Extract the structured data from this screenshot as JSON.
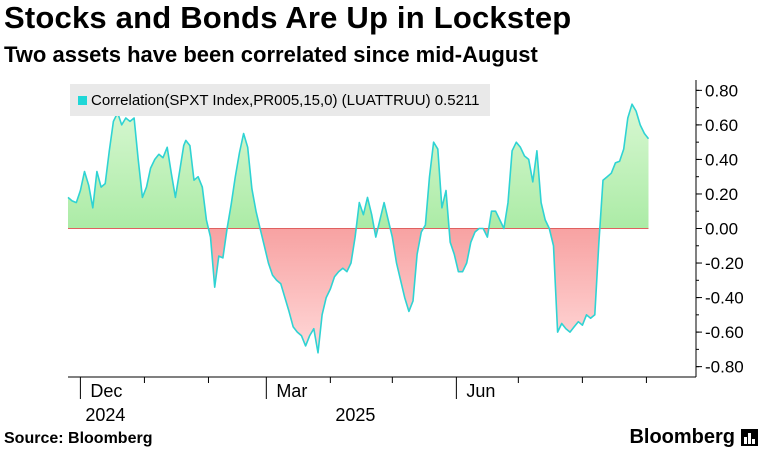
{
  "header": {
    "title": "Stocks and Bonds Are Up in Lockstep",
    "subtitle": "Two assets have been correlated since mid-August"
  },
  "footer": {
    "source": "Source: Bloomberg",
    "brand": "Bloomberg"
  },
  "chart_data": {
    "type": "area",
    "title": "Stocks and Bonds Are Up in Lockstep",
    "subtitle": "Two assets have been correlated since mid-August",
    "legend": [
      {
        "name": "Correlation(SPXT Index,PR005,15,0) (LUATTRUU) 0.5211",
        "color": "#1fd7d7"
      }
    ],
    "legend_label": "Correlation(SPXT Index,PR005,15,0) (LUATTRUU) 0.5211",
    "ylim": [
      -0.86,
      0.86
    ],
    "yticks": [
      0.8,
      0.6,
      0.4,
      0.2,
      0.0,
      -0.2,
      -0.4,
      -0.6,
      -0.8
    ],
    "ytick_labels": [
      "0.80",
      "0.60",
      "0.40",
      "0.20",
      "0.00",
      "-0.20",
      "-0.40",
      "-0.60",
      "-0.80"
    ],
    "x_axis": {
      "start": "2024-11-25",
      "end": "2025-09-25",
      "month_labels": [
        {
          "date": "2024-12-01",
          "label": "Dec"
        },
        {
          "date": "2025-03-01",
          "label": "Mar"
        },
        {
          "date": "2025-06-01",
          "label": "Jun"
        }
      ],
      "year_labels": [
        {
          "date": "2024-12-01",
          "label": "2024"
        },
        {
          "date": "2025-04-01",
          "label": "2025"
        }
      ],
      "minor_ticks": [
        "2025-01-01",
        "2025-02-01",
        "2025-04-01",
        "2025-05-01",
        "2025-07-01",
        "2025-08-01",
        "2025-09-01"
      ],
      "major_ticks": [
        "2024-12-01",
        "2025-03-01",
        "2025-06-01"
      ]
    },
    "grid": false,
    "positive_color": "#7fe07a",
    "negative_color": "#f06b6b",
    "line_color": "#2fd3d3",
    "series": [
      {
        "name": "Correlation",
        "points": [
          [
            "2024-11-25",
            0.18
          ],
          [
            "2024-11-27",
            0.16
          ],
          [
            "2024-11-29",
            0.15
          ],
          [
            "2024-12-01",
            0.22
          ],
          [
            "2024-12-03",
            0.33
          ],
          [
            "2024-12-05",
            0.25
          ],
          [
            "2024-12-07",
            0.12
          ],
          [
            "2024-12-09",
            0.33
          ],
          [
            "2024-12-11",
            0.24
          ],
          [
            "2024-12-13",
            0.26
          ],
          [
            "2024-12-15",
            0.45
          ],
          [
            "2024-12-17",
            0.62
          ],
          [
            "2024-12-19",
            0.67
          ],
          [
            "2024-12-21",
            0.6
          ],
          [
            "2024-12-23",
            0.64
          ],
          [
            "2024-12-25",
            0.62
          ],
          [
            "2024-12-27",
            0.64
          ],
          [
            "2024-12-29",
            0.4
          ],
          [
            "2024-12-31",
            0.18
          ],
          [
            "2025-01-02",
            0.24
          ],
          [
            "2025-01-04",
            0.35
          ],
          [
            "2025-01-06",
            0.4
          ],
          [
            "2025-01-08",
            0.43
          ],
          [
            "2025-01-10",
            0.41
          ],
          [
            "2025-01-12",
            0.47
          ],
          [
            "2025-01-14",
            0.32
          ],
          [
            "2025-01-16",
            0.18
          ],
          [
            "2025-01-18",
            0.33
          ],
          [
            "2025-01-20",
            0.48
          ],
          [
            "2025-01-21",
            0.51
          ],
          [
            "2025-01-23",
            0.48
          ],
          [
            "2025-01-25",
            0.28
          ],
          [
            "2025-01-27",
            0.3
          ],
          [
            "2025-01-29",
            0.24
          ],
          [
            "2025-01-31",
            0.05
          ],
          [
            "2025-02-02",
            -0.05
          ],
          [
            "2025-02-04",
            -0.34
          ],
          [
            "2025-02-06",
            -0.16
          ],
          [
            "2025-02-08",
            -0.17
          ],
          [
            "2025-02-10",
            0.0
          ],
          [
            "2025-02-12",
            0.14
          ],
          [
            "2025-02-14",
            0.3
          ],
          [
            "2025-02-16",
            0.44
          ],
          [
            "2025-02-18",
            0.55
          ],
          [
            "2025-02-20",
            0.47
          ],
          [
            "2025-02-22",
            0.23
          ],
          [
            "2025-02-24",
            0.1
          ],
          [
            "2025-02-26",
            0.0
          ],
          [
            "2025-02-28",
            -0.1
          ],
          [
            "2025-03-02",
            -0.2
          ],
          [
            "2025-03-04",
            -0.27
          ],
          [
            "2025-03-06",
            -0.3
          ],
          [
            "2025-03-08",
            -0.32
          ],
          [
            "2025-03-10",
            -0.4
          ],
          [
            "2025-03-12",
            -0.48
          ],
          [
            "2025-03-14",
            -0.57
          ],
          [
            "2025-03-16",
            -0.6
          ],
          [
            "2025-03-18",
            -0.62
          ],
          [
            "2025-03-20",
            -0.68
          ],
          [
            "2025-03-22",
            -0.62
          ],
          [
            "2025-03-24",
            -0.58
          ],
          [
            "2025-03-26",
            -0.72
          ],
          [
            "2025-03-28",
            -0.5
          ],
          [
            "2025-03-30",
            -0.4
          ],
          [
            "2025-04-01",
            -0.35
          ],
          [
            "2025-04-03",
            -0.28
          ],
          [
            "2025-04-05",
            -0.25
          ],
          [
            "2025-04-07",
            -0.23
          ],
          [
            "2025-04-09",
            -0.25
          ],
          [
            "2025-04-11",
            -0.2
          ],
          [
            "2025-04-13",
            -0.05
          ],
          [
            "2025-04-15",
            0.15
          ],
          [
            "2025-04-17",
            0.08
          ],
          [
            "2025-04-19",
            0.18
          ],
          [
            "2025-04-21",
            0.08
          ],
          [
            "2025-04-23",
            -0.05
          ],
          [
            "2025-04-25",
            0.05
          ],
          [
            "2025-04-27",
            0.15
          ],
          [
            "2025-04-29",
            0.05
          ],
          [
            "2025-05-01",
            -0.05
          ],
          [
            "2025-05-03",
            -0.2
          ],
          [
            "2025-05-05",
            -0.3
          ],
          [
            "2025-05-07",
            -0.4
          ],
          [
            "2025-05-09",
            -0.48
          ],
          [
            "2025-05-11",
            -0.42
          ],
          [
            "2025-05-13",
            -0.15
          ],
          [
            "2025-05-15",
            -0.02
          ],
          [
            "2025-05-17",
            0.02
          ],
          [
            "2025-05-19",
            0.3
          ],
          [
            "2025-05-21",
            0.5
          ],
          [
            "2025-05-23",
            0.46
          ],
          [
            "2025-05-25",
            0.12
          ],
          [
            "2025-05-27",
            0.22
          ],
          [
            "2025-05-29",
            -0.08
          ],
          [
            "2025-05-31",
            -0.15
          ],
          [
            "2025-06-02",
            -0.25
          ],
          [
            "2025-06-04",
            -0.25
          ],
          [
            "2025-06-06",
            -0.2
          ],
          [
            "2025-06-08",
            -0.08
          ],
          [
            "2025-06-10",
            -0.02
          ],
          [
            "2025-06-12",
            0.0
          ],
          [
            "2025-06-14",
            0.0
          ],
          [
            "2025-06-16",
            -0.05
          ],
          [
            "2025-06-18",
            0.1
          ],
          [
            "2025-06-20",
            0.1
          ],
          [
            "2025-06-22",
            0.05
          ],
          [
            "2025-06-24",
            0.0
          ],
          [
            "2025-06-26",
            0.15
          ],
          [
            "2025-06-28",
            0.45
          ],
          [
            "2025-06-30",
            0.5
          ],
          [
            "2025-07-02",
            0.47
          ],
          [
            "2025-07-04",
            0.42
          ],
          [
            "2025-07-06",
            0.4
          ],
          [
            "2025-07-08",
            0.27
          ],
          [
            "2025-07-10",
            0.45
          ],
          [
            "2025-07-12",
            0.15
          ],
          [
            "2025-07-14",
            0.05
          ],
          [
            "2025-07-16",
            0.0
          ],
          [
            "2025-07-18",
            -0.1
          ],
          [
            "2025-07-20",
            -0.6
          ],
          [
            "2025-07-22",
            -0.55
          ],
          [
            "2025-07-24",
            -0.58
          ],
          [
            "2025-07-26",
            -0.6
          ],
          [
            "2025-07-28",
            -0.57
          ],
          [
            "2025-07-30",
            -0.54
          ],
          [
            "2025-08-01",
            -0.56
          ],
          [
            "2025-08-03",
            -0.5
          ],
          [
            "2025-08-05",
            -0.52
          ],
          [
            "2025-08-07",
            -0.5
          ],
          [
            "2025-08-09",
            -0.08
          ],
          [
            "2025-08-11",
            0.28
          ],
          [
            "2025-08-13",
            0.3
          ],
          [
            "2025-08-15",
            0.32
          ],
          [
            "2025-08-17",
            0.38
          ],
          [
            "2025-08-19",
            0.39
          ],
          [
            "2025-08-21",
            0.46
          ],
          [
            "2025-08-23",
            0.64
          ],
          [
            "2025-08-25",
            0.72
          ],
          [
            "2025-08-27",
            0.68
          ],
          [
            "2025-08-29",
            0.6
          ],
          [
            "2025-08-31",
            0.55
          ],
          [
            "2025-09-02",
            0.52
          ]
        ]
      }
    ]
  }
}
